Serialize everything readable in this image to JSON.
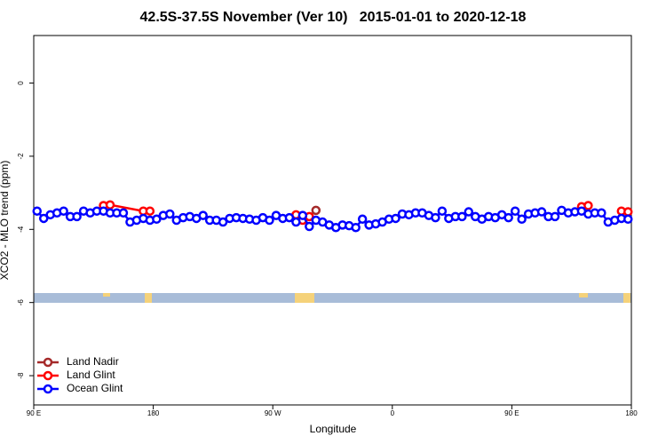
{
  "chart_data": {
    "type": "line",
    "title": "42.5S-37.5S November (Ver 10)   2015-01-01 to 2020-12-18",
    "x_label": "Longitude",
    "y_label": "XCO2 - MLO trend (ppm)",
    "xlim": [
      90,
      540
    ],
    "ylim": [
      -8.8,
      1.3
    ],
    "xticks": [
      {
        "value": 90,
        "label": "90 E"
      },
      180,
      {
        "value": 270,
        "label": "90 W"
      },
      {
        "value": 360,
        "label": "0"
      },
      {
        "value": 450,
        "label": "90 E"
      },
      {
        "value": 540,
        "label": "180"
      }
    ],
    "yticks": [
      0,
      -2,
      -4,
      -6,
      -8
    ],
    "legend": "bottom-left",
    "series": [
      {
        "name": "Land Nadir",
        "color": "#a52a2a",
        "x": [
          302.5
        ],
        "values": [
          -3.48
        ]
      },
      {
        "name": "Land Glint",
        "color": "#ff0000",
        "x": [
          142.5,
          147.5,
          172.5,
          177.5,
          null,
          287.5,
          292.5,
          297.5,
          null,
          502.5,
          507.5,
          null,
          532.5,
          537.5
        ],
        "values": [
          -3.35,
          -3.33,
          -3.5,
          -3.5,
          null,
          -3.6,
          -3.75,
          -3.65,
          null,
          -3.38,
          -3.35,
          null,
          -3.5,
          -3.52
        ]
      },
      {
        "name": "Ocean Glint",
        "color": "#0000ff",
        "x": [
          92.5,
          97.5,
          102.5,
          107.5,
          112.5,
          117.5,
          122.5,
          127.5,
          132.5,
          137.5,
          142.5,
          147.5,
          152.5,
          157.5,
          162.5,
          167.5,
          172.5,
          177.5,
          182.5,
          187.5,
          192.5,
          197.5,
          202.5,
          207.5,
          212.5,
          217.5,
          222.5,
          227.5,
          232.5,
          237.5,
          242.5,
          247.5,
          252.5,
          257.5,
          262.5,
          267.5,
          272.5,
          277.5,
          282.5,
          287.5,
          292.5,
          297.5,
          302.5,
          307.5,
          312.5,
          317.5,
          322.5,
          327.5,
          332.5,
          337.5,
          342.5,
          347.5,
          352.5,
          357.5,
          362.5,
          367.5,
          372.5,
          377.5,
          382.5,
          387.5,
          392.5,
          397.5,
          402.5,
          407.5,
          412.5,
          417.5,
          422.5,
          427.5,
          432.5,
          437.5,
          442.5,
          447.5,
          452.5,
          457.5,
          462.5,
          467.5,
          472.5,
          477.5,
          482.5,
          487.5,
          492.5,
          497.5,
          502.5,
          507.5,
          512.5,
          517.5,
          522.5,
          527.5,
          532.5,
          537.5
        ],
        "values": [
          -3.5,
          -3.7,
          -3.6,
          -3.55,
          -3.5,
          -3.65,
          -3.65,
          -3.5,
          -3.55,
          -3.5,
          -3.5,
          -3.55,
          -3.55,
          -3.55,
          -3.8,
          -3.75,
          -3.7,
          -3.75,
          -3.72,
          -3.62,
          -3.58,
          -3.75,
          -3.68,
          -3.65,
          -3.7,
          -3.62,
          -3.75,
          -3.75,
          -3.8,
          -3.7,
          -3.68,
          -3.7,
          -3.72,
          -3.75,
          -3.68,
          -3.75,
          -3.62,
          -3.7,
          -3.68,
          -3.8,
          -3.62,
          -3.92,
          -3.75,
          -3.8,
          -3.88,
          -3.95,
          -3.88,
          -3.9,
          -3.95,
          -3.72,
          -3.88,
          -3.85,
          -3.8,
          -3.72,
          -3.7,
          -3.58,
          -3.6,
          -3.55,
          -3.55,
          -3.62,
          -3.68,
          -3.5,
          -3.7,
          -3.65,
          -3.65,
          -3.52,
          -3.65,
          -3.72,
          -3.65,
          -3.68,
          -3.6,
          -3.68,
          -3.5,
          -3.72,
          -3.58,
          -3.55,
          -3.52,
          -3.65,
          -3.65,
          -3.48,
          -3.55,
          -3.52,
          -3.5,
          -3.58,
          -3.55,
          -3.55,
          -3.8,
          -3.75,
          -3.7,
          -3.72
        ]
      }
    ]
  }
}
